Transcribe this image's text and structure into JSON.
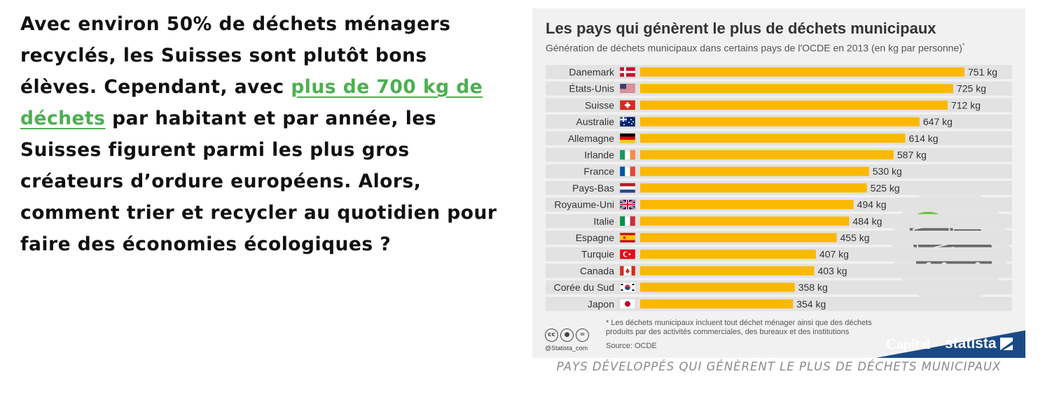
{
  "article": {
    "text_before": "Avec environ 50% de déchets ménagers recyclés, les Suisses sont plutôt bons élèves. Cependant, avec ",
    "link_text": "plus de 700 kg de déchets",
    "text_after": " par habitant et par année, les Suisses figurent parmi les plus gros créateurs d’ordure européens. Alors, comment trier et recycler au quotidien pour faire des économies écologiques ?",
    "link_color": "#4caf50"
  },
  "figure": {
    "caption": "PAYS DÉVELOPPÉS QUI GÉNÈRENT LE PLUS DE DÉCHETS MUNICIPAUX",
    "footnote": "* Les déchets municipaux incluent tout déchet ménager ainsi que des déchets produits par des activités commerciales, des bureaux et des institutions",
    "source": "Source: OCDE",
    "credit": "@Statista_com",
    "cc_icons": [
      "cc-icon",
      "attribution-icon",
      "no-derivatives-icon"
    ],
    "logos": {
      "capital": "Capital",
      "statista": "statista"
    },
    "brand_color": "#1a4a86",
    "illustration": "dump-truck-icon"
  },
  "chart_data": {
    "type": "bar",
    "orientation": "horizontal",
    "title": "Les pays qui génèrent le plus de déchets municipaux",
    "subtitle": "Génération de déchets municipaux dans certains pays de l'OCDE en 2013 (en kg par personne)",
    "subtitle_mark": "*",
    "categories": [
      "Danemark",
      "États-Unis",
      "Suisse",
      "Australie",
      "Allemagne",
      "Irlande",
      "France",
      "Pays-Bas",
      "Royaume-Uni",
      "Italie",
      "Espagne",
      "Turquie",
      "Canada",
      "Corée du Sud",
      "Japon"
    ],
    "values": [
      751,
      725,
      712,
      647,
      614,
      587,
      530,
      525,
      494,
      484,
      455,
      407,
      403,
      358,
      354
    ],
    "value_labels": [
      "751 kg",
      "725 kg",
      "712 kg",
      "647 kg",
      "614 kg",
      "587 kg",
      "530 kg",
      "525 kg",
      "494 kg",
      "484 kg",
      "455 kg",
      "407 kg",
      "403 kg",
      "358 kg",
      "354 kg"
    ],
    "flags": [
      "dk",
      "us",
      "ch",
      "au",
      "de",
      "ie",
      "fr",
      "nl",
      "gb",
      "it",
      "es",
      "tr",
      "ca",
      "kr",
      "jp"
    ],
    "xlim": [
      0,
      751
    ],
    "bar_color": "#fbb800",
    "row_color": "#e2e2e2",
    "grid": false,
    "legend": "none"
  }
}
